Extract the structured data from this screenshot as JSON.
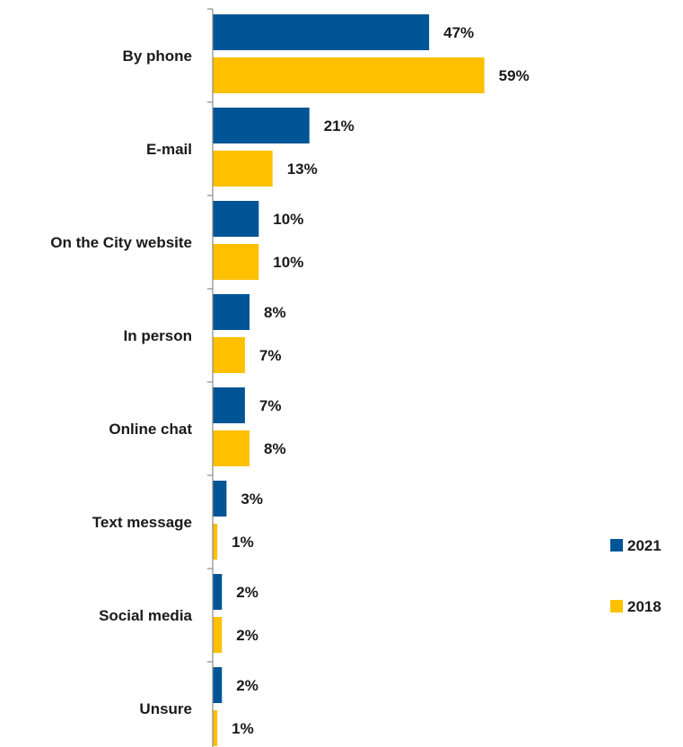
{
  "chart_data": {
    "type": "bar",
    "orientation": "horizontal",
    "categories": [
      "By phone",
      "E-mail",
      "On the City website",
      "In person",
      "Online chat",
      "Text message",
      "Social media",
      "Unsure"
    ],
    "series": [
      {
        "name": "2021",
        "color": "#005596",
        "values": [
          47,
          21,
          10,
          8,
          7,
          3,
          2,
          2
        ],
        "labels": [
          "47%",
          "21%",
          "10%",
          "8%",
          "7%",
          "3%",
          "2%",
          "2%"
        ]
      },
      {
        "name": "2018",
        "color": "#FFC000",
        "values": [
          59,
          13,
          10,
          7,
          8,
          1,
          2,
          1
        ],
        "labels": [
          "59%",
          "13%",
          "10%",
          "7%",
          "8%",
          "1%",
          "2%",
          "1%"
        ]
      }
    ],
    "xlim": [
      0,
      100
    ],
    "grid": false,
    "legend_position": "right"
  }
}
